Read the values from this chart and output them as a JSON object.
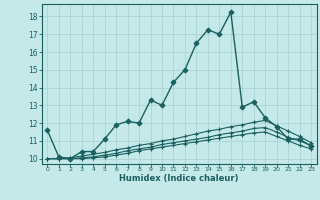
{
  "xlabel": "Humidex (Indice chaleur)",
  "bg_color": "#c5e8e8",
  "grid_color": "#a8d0d0",
  "line_color": "#1a6060",
  "xlim": [
    -0.5,
    23.5
  ],
  "ylim": [
    9.7,
    18.7
  ],
  "xticks": [
    0,
    1,
    2,
    3,
    4,
    5,
    6,
    7,
    8,
    9,
    10,
    11,
    12,
    13,
    14,
    15,
    16,
    17,
    18,
    19,
    20,
    21,
    22,
    23
  ],
  "yticks": [
    10,
    11,
    12,
    13,
    14,
    15,
    16,
    17,
    18
  ],
  "series": [
    {
      "x": [
        0,
        1,
        2,
        3,
        4,
        5,
        6,
        7,
        8,
        9,
        10,
        11,
        12,
        13,
        14,
        15,
        16,
        17,
        18,
        19,
        20,
        21,
        22,
        23
      ],
      "y": [
        11.6,
        10.1,
        10.0,
        10.4,
        10.4,
        11.1,
        11.9,
        12.1,
        12.0,
        13.3,
        13.0,
        14.3,
        15.0,
        16.5,
        17.25,
        17.0,
        18.25,
        12.9,
        13.2,
        12.3,
        11.8,
        11.1,
        11.1,
        10.7
      ],
      "marker": "D",
      "ms": 2.5,
      "lw": 1.0
    },
    {
      "x": [
        0,
        1,
        2,
        3,
        4,
        5,
        6,
        7,
        8,
        9,
        10,
        11,
        12,
        13,
        14,
        15,
        16,
        17,
        18,
        19,
        20,
        21,
        22,
        23
      ],
      "y": [
        10.0,
        10.0,
        10.05,
        10.15,
        10.25,
        10.35,
        10.5,
        10.6,
        10.75,
        10.85,
        11.0,
        11.1,
        11.25,
        11.4,
        11.55,
        11.65,
        11.8,
        11.9,
        12.05,
        12.15,
        11.85,
        11.55,
        11.25,
        10.9
      ],
      "marker": "+",
      "ms": 3.5,
      "lw": 0.8
    },
    {
      "x": [
        0,
        1,
        2,
        3,
        4,
        5,
        6,
        7,
        8,
        9,
        10,
        11,
        12,
        13,
        14,
        15,
        16,
        17,
        18,
        19,
        20,
        21,
        22,
        23
      ],
      "y": [
        10.0,
        10.0,
        10.0,
        10.05,
        10.1,
        10.2,
        10.3,
        10.45,
        10.55,
        10.65,
        10.8,
        10.9,
        11.0,
        11.1,
        11.2,
        11.35,
        11.45,
        11.55,
        11.7,
        11.75,
        11.5,
        11.2,
        11.0,
        10.75
      ],
      "marker": "+",
      "ms": 3.5,
      "lw": 0.8
    },
    {
      "x": [
        0,
        1,
        2,
        3,
        4,
        5,
        6,
        7,
        8,
        9,
        10,
        11,
        12,
        13,
        14,
        15,
        16,
        17,
        18,
        19,
        20,
        21,
        22,
        23
      ],
      "y": [
        10.0,
        10.0,
        10.0,
        10.0,
        10.05,
        10.1,
        10.2,
        10.3,
        10.45,
        10.55,
        10.65,
        10.75,
        10.85,
        10.95,
        11.05,
        11.15,
        11.25,
        11.35,
        11.45,
        11.5,
        11.25,
        11.0,
        10.75,
        10.55
      ],
      "marker": "+",
      "ms": 3.5,
      "lw": 0.8
    }
  ]
}
